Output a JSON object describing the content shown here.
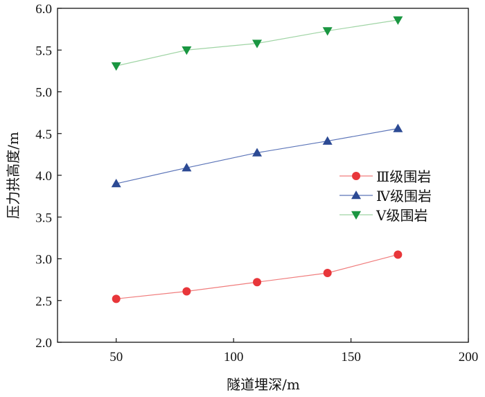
{
  "chart_data": {
    "type": "line",
    "title": "",
    "xlabel": "隧道埋深/m",
    "ylabel": "压力拱高度/m",
    "xlim": [
      25,
      200
    ],
    "ylim": [
      2.0,
      6.0
    ],
    "xticks": [
      50,
      100,
      150,
      200
    ],
    "xtick_labels": [
      "50",
      "100",
      "150",
      "200"
    ],
    "yticks": [
      2.0,
      2.5,
      3.0,
      3.5,
      4.0,
      4.5,
      5.0,
      5.5,
      6.0
    ],
    "ytick_labels": [
      "2.0",
      "2.5",
      "3.0",
      "3.5",
      "4.0",
      "4.5",
      "5.0",
      "5.5",
      "6.0"
    ],
    "grid": false,
    "legend_position": "center-right",
    "x": [
      50,
      80,
      110,
      140,
      170
    ],
    "series": [
      {
        "name": "Ⅲ级围岩",
        "values": [
          2.52,
          2.61,
          2.72,
          2.83,
          3.05
        ],
        "marker": "circle",
        "line_color": "#f07c7c",
        "marker_color": "#e8363a"
      },
      {
        "name": "Ⅳ级围岩",
        "values": [
          3.9,
          4.09,
          4.27,
          4.41,
          4.56
        ],
        "marker": "triangle-up",
        "line_color": "#5b74b8",
        "marker_color": "#2c4a94"
      },
      {
        "name": "Ⅴ级围岩",
        "values": [
          5.31,
          5.5,
          5.58,
          5.73,
          5.86
        ],
        "marker": "triangle-down",
        "line_color": "#9fd4a4",
        "marker_color": "#1a9641"
      }
    ]
  }
}
